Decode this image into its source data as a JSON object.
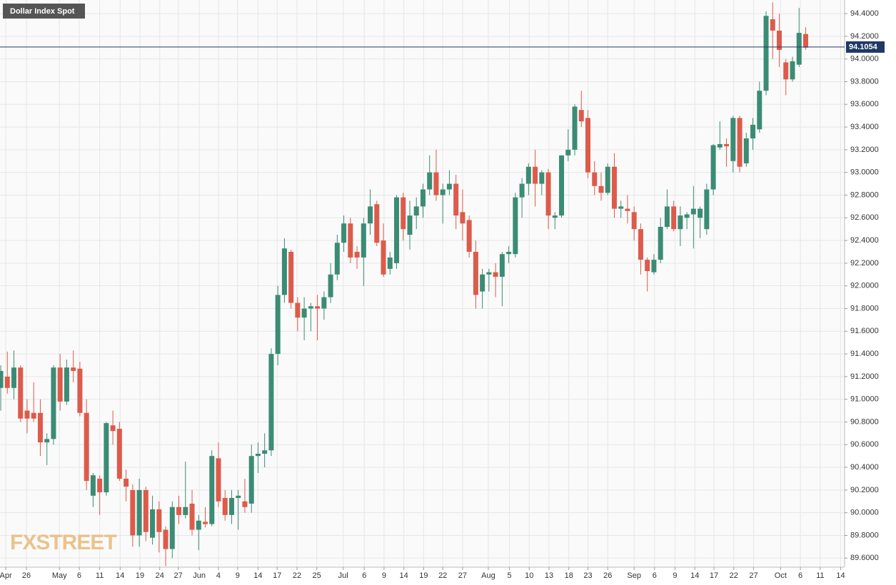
{
  "chart_data": {
    "type": "candlestick",
    "title": "Dollar Index Spot",
    "logo": "FXSTREET",
    "last_price": {
      "value": 94.1054,
      "label": "94.1054"
    },
    "up_color": "#3b8c74",
    "down_color": "#dc5b4b",
    "last_color": "#1f3864",
    "grid": true,
    "ylim": [
      89.52,
      94.52
    ],
    "xlim": [
      -0.11,
      127.9
    ],
    "yticks": [
      {
        "value": 89.6,
        "label": "89.6000"
      },
      {
        "value": 89.8,
        "label": "89.8000"
      },
      {
        "value": 90.0,
        "label": "90.0000"
      },
      {
        "value": 90.2,
        "label": "90.2000"
      },
      {
        "value": 90.4,
        "label": "90.4000"
      },
      {
        "value": 90.6,
        "label": "90.6000"
      },
      {
        "value": 90.8,
        "label": "90.8000"
      },
      {
        "value": 91.0,
        "label": "91.0000"
      },
      {
        "value": 91.2,
        "label": "91.2000"
      },
      {
        "value": 91.4,
        "label": "91.4000"
      },
      {
        "value": 91.6,
        "label": "91.6000"
      },
      {
        "value": 91.8,
        "label": "91.8000"
      },
      {
        "value": 92.0,
        "label": "92.0000"
      },
      {
        "value": 92.2,
        "label": "92.2000"
      },
      {
        "value": 92.4,
        "label": "92.4000"
      },
      {
        "value": 92.6,
        "label": "92.6000"
      },
      {
        "value": 92.8,
        "label": "92.8000"
      },
      {
        "value": 93.0,
        "label": "93.0000"
      },
      {
        "value": 93.2,
        "label": "93.2000"
      },
      {
        "value": 93.4,
        "label": "93.4000"
      },
      {
        "value": 93.6,
        "label": "93.6000"
      },
      {
        "value": 93.8,
        "label": "93.8000"
      },
      {
        "value": 94.0,
        "label": "94.0000"
      },
      {
        "value": 94.2,
        "label": "94.2000"
      },
      {
        "value": 94.4,
        "label": "94.4000"
      }
    ],
    "xticks": [
      {
        "value": 0.76,
        "label": "Apr"
      },
      {
        "value": 3.9,
        "label": "26"
      },
      {
        "value": 8.9,
        "label": "May"
      },
      {
        "value": 11.9,
        "label": "6"
      },
      {
        "value": 15.0,
        "label": "11"
      },
      {
        "value": 18.1,
        "label": "14"
      },
      {
        "value": 21.1,
        "label": "19"
      },
      {
        "value": 24.1,
        "label": "24"
      },
      {
        "value": 26.9,
        "label": "27"
      },
      {
        "value": 30.1,
        "label": "Jun"
      },
      {
        "value": 33.0,
        "label": "4"
      },
      {
        "value": 35.9,
        "label": "9"
      },
      {
        "value": 39.0,
        "label": "14"
      },
      {
        "value": 41.9,
        "label": "17"
      },
      {
        "value": 44.9,
        "label": "22"
      },
      {
        "value": 47.9,
        "label": "25"
      },
      {
        "value": 51.9,
        "label": "Jul"
      },
      {
        "value": 55.1,
        "label": "6"
      },
      {
        "value": 58.1,
        "label": "9"
      },
      {
        "value": 61.1,
        "label": "14"
      },
      {
        "value": 64.1,
        "label": "19"
      },
      {
        "value": 67.0,
        "label": "22"
      },
      {
        "value": 70.0,
        "label": "27"
      },
      {
        "value": 73.9,
        "label": "Aug"
      },
      {
        "value": 77.1,
        "label": "5"
      },
      {
        "value": 80.1,
        "label": "10"
      },
      {
        "value": 83.1,
        "label": "13"
      },
      {
        "value": 86.1,
        "label": "18"
      },
      {
        "value": 89.0,
        "label": "23"
      },
      {
        "value": 92.0,
        "label": "26"
      },
      {
        "value": 96.0,
        "label": "Sep"
      },
      {
        "value": 99.1,
        "label": "6"
      },
      {
        "value": 102.2,
        "label": "9"
      },
      {
        "value": 105.2,
        "label": "14"
      },
      {
        "value": 108.1,
        "label": "17"
      },
      {
        "value": 111.1,
        "label": "22"
      },
      {
        "value": 114.1,
        "label": "27"
      },
      {
        "value": 118.2,
        "label": "Oct"
      },
      {
        "value": 121.2,
        "label": "6"
      },
      {
        "value": 124.2,
        "label": "11"
      },
      {
        "value": 127.3,
        "label": "14"
      }
    ],
    "open": [
      91.1,
      91.2,
      91.1,
      91.28,
      90.9,
      90.88,
      90.88,
      90.62,
      90.65,
      91.28,
      90.98,
      91.28,
      91.27,
      90.88,
      90.15,
      90.3,
      90.18,
      90.77,
      90.74,
      90.3,
      90.2,
      89.8,
      90.2,
      89.78,
      90.03,
      89.85,
      89.68,
      90.05,
      89.98,
      90.08,
      89.85,
      89.92,
      89.9,
      90.48,
      90.13,
      89.98,
      90.13,
      90.1,
      90.08,
      90.5,
      90.52,
      90.55,
      91.4,
      91.92,
      92.3,
      91.85,
      91.72,
      91.8,
      91.82,
      91.8,
      91.9,
      92.1,
      92.38,
      92.55,
      92.3,
      92.25,
      92.55,
      92.72,
      92.4,
      92.15,
      92.2,
      92.78,
      92.45,
      92.62,
      92.7,
      92.85,
      93.0,
      92.8,
      92.85,
      92.9,
      92.65,
      92.58,
      92.3,
      91.95,
      92.1,
      92.12,
      92.08,
      92.28,
      92.28,
      92.78,
      92.9,
      93.05,
      92.9,
      93.0,
      92.6,
      92.62,
      93.15,
      93.2,
      93.55,
      93.48,
      93.0,
      92.88,
      92.82,
      93.05,
      92.68,
      92.68,
      92.65,
      92.5,
      92.23,
      92.12,
      92.23,
      92.52,
      92.7,
      92.5,
      92.6,
      92.63,
      92.6,
      92.5,
      92.85,
      93.22,
      93.25,
      93.1,
      93.48,
      93.08,
      93.3,
      93.38,
      93.72,
      94.35,
      94.25,
      93.97,
      93.82,
      93.95,
      94.22
    ],
    "high": [
      91.3,
      91.42,
      91.43,
      91.3,
      91.0,
      91.15,
      91.0,
      90.7,
      91.3,
      91.4,
      91.35,
      91.43,
      91.33,
      91.0,
      90.35,
      90.33,
      90.8,
      90.9,
      90.8,
      90.38,
      90.25,
      90.3,
      90.23,
      90.15,
      90.1,
      89.88,
      90.1,
      90.15,
      90.45,
      90.2,
      89.98,
      90.05,
      90.55,
      90.62,
      90.2,
      90.2,
      90.2,
      90.3,
      90.6,
      90.62,
      90.7,
      91.45,
      92.0,
      92.42,
      92.32,
      91.9,
      91.9,
      91.85,
      91.92,
      91.95,
      92.2,
      92.45,
      92.62,
      92.6,
      92.35,
      92.6,
      92.85,
      92.75,
      92.55,
      92.3,
      92.8,
      92.82,
      92.75,
      92.78,
      92.9,
      93.15,
      93.2,
      92.9,
      93.02,
      92.98,
      92.85,
      92.62,
      92.4,
      92.15,
      92.15,
      92.2,
      92.3,
      92.35,
      92.82,
      92.95,
      93.08,
      93.2,
      93.02,
      93.03,
      92.65,
      93.15,
      93.38,
      93.6,
      93.72,
      93.55,
      93.1,
      93.0,
      93.08,
      93.17,
      92.75,
      92.8,
      92.7,
      92.55,
      92.25,
      92.28,
      92.6,
      92.85,
      92.75,
      92.7,
      92.65,
      92.88,
      92.7,
      92.9,
      93.25,
      93.45,
      93.3,
      93.5,
      93.5,
      93.35,
      93.48,
      93.8,
      94.42,
      94.5,
      94.4,
      94.0,
      94.02,
      94.45,
      94.28
    ],
    "low": [
      90.9,
      91.05,
      91.0,
      90.8,
      90.7,
      90.8,
      90.5,
      90.42,
      90.6,
      90.9,
      90.95,
      91.15,
      90.85,
      90.2,
      90.05,
      89.98,
      90.15,
      90.6,
      90.28,
      90.1,
      89.7,
      89.7,
      89.75,
      89.72,
      89.65,
      89.53,
      89.6,
      89.9,
      89.95,
      89.8,
      89.67,
      89.87,
      89.88,
      90.05,
      89.93,
      89.9,
      89.85,
      90.0,
      90.0,
      90.35,
      90.4,
      90.5,
      91.3,
      91.85,
      91.8,
      91.6,
      91.52,
      91.6,
      91.52,
      91.7,
      91.85,
      92.05,
      92.3,
      92.2,
      92.15,
      92.0,
      92.45,
      92.35,
      92.08,
      92.1,
      92.15,
      92.4,
      92.32,
      92.5,
      92.6,
      92.8,
      92.75,
      92.55,
      92.8,
      92.5,
      92.4,
      92.25,
      91.8,
      91.8,
      91.95,
      91.9,
      91.82,
      92.2,
      92.25,
      92.6,
      92.8,
      92.7,
      92.8,
      92.5,
      92.5,
      92.6,
      93.1,
      93.15,
      93.4,
      92.95,
      92.8,
      92.75,
      92.8,
      92.6,
      92.6,
      92.55,
      92.4,
      92.1,
      91.95,
      92.1,
      92.2,
      92.5,
      92.48,
      92.35,
      92.5,
      92.33,
      92.42,
      92.45,
      92.8,
      93.2,
      93.05,
      93.0,
      93.0,
      93.05,
      93.2,
      93.35,
      93.68,
      94.0,
      93.93,
      93.68,
      93.8,
      93.93,
      94.08
    ],
    "close": [
      91.25,
      91.1,
      91.28,
      90.83,
      90.83,
      90.83,
      90.62,
      90.65,
      91.28,
      90.98,
      91.28,
      91.25,
      90.88,
      90.28,
      90.33,
      90.18,
      90.79,
      90.72,
      90.3,
      90.23,
      89.8,
      90.2,
      89.83,
      90.03,
      89.83,
      89.68,
      90.05,
      89.98,
      90.05,
      89.85,
      89.93,
      89.9,
      90.5,
      90.1,
      89.98,
      90.13,
      90.15,
      90.05,
      90.5,
      90.52,
      90.55,
      91.4,
      91.92,
      92.33,
      91.85,
      91.72,
      91.8,
      91.82,
      91.8,
      91.9,
      92.1,
      92.38,
      92.55,
      92.25,
      92.25,
      92.55,
      92.7,
      92.38,
      92.1,
      92.25,
      92.78,
      92.5,
      92.62,
      92.7,
      92.85,
      93.0,
      92.8,
      92.85,
      92.9,
      92.62,
      92.55,
      92.3,
      91.92,
      92.1,
      92.12,
      92.08,
      92.28,
      92.3,
      92.78,
      92.9,
      93.05,
      92.9,
      93.0,
      92.62,
      92.62,
      93.15,
      93.2,
      93.58,
      93.45,
      93.0,
      92.88,
      92.82,
      93.05,
      92.68,
      92.7,
      92.66,
      92.5,
      92.23,
      92.13,
      92.23,
      92.52,
      92.7,
      92.5,
      92.62,
      92.63,
      92.68,
      92.68,
      92.85,
      93.24,
      93.25,
      93.23,
      93.48,
      93.05,
      93.3,
      93.42,
      93.72,
      94.38,
      94.25,
      94.08,
      93.82,
      93.98,
      94.23,
      94.1
    ]
  }
}
